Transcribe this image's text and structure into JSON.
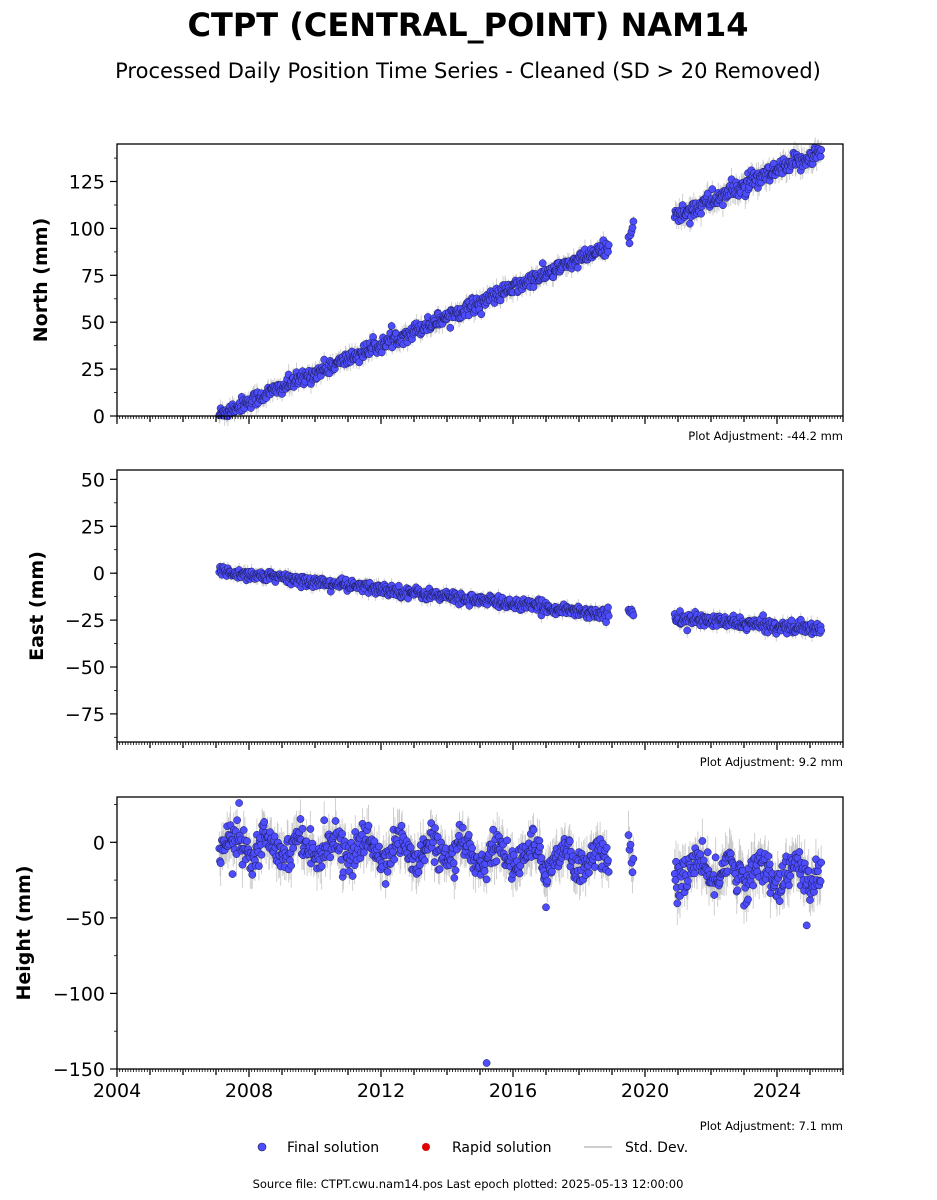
{
  "title": "CTPT (CENTRAL_POINT) NAM14",
  "subtitle": "Processed Daily Position Time Series - Cleaned (SD > 20 Removed)",
  "source_note": "Source file: CTPT.cwu.nam14.pos  Last epoch plotted: 2025-05-13 12:00:00",
  "legend": {
    "final": "Final solution",
    "rapid": "Rapid solution",
    "std": "Std. Dev."
  },
  "colors": {
    "final": "#4d4dff",
    "final_edge": "#1a1a4d",
    "rapid": "#e00000",
    "std": "#bdbdbd"
  },
  "chart_data": [
    {
      "type": "scatter",
      "ylabel": "North (mm)",
      "xlim": [
        2004,
        2026
      ],
      "ylim": [
        0,
        145
      ],
      "yticks": [
        0,
        25,
        50,
        75,
        100,
        125
      ],
      "ytick_labels": [
        "0",
        "25",
        "50",
        "75",
        "100",
        "125"
      ],
      "adjustment": "Plot Adjustment: -44.2 mm",
      "segments": [
        {
          "x": [
            2007.1,
            2018.9
          ],
          "y": [
            1,
            90
          ],
          "sd": 2.0,
          "step": 0.02
        },
        {
          "x": [
            2019.5,
            2019.65
          ],
          "y": [
            95,
            103
          ],
          "sd": 2.0,
          "step": 0.03
        },
        {
          "x": [
            2020.9,
            2025.35
          ],
          "y": [
            106,
            141
          ],
          "sd": 2.5,
          "step": 0.02
        }
      ],
      "outliers": []
    },
    {
      "type": "scatter",
      "ylabel": "East (mm)",
      "xlim": [
        2004,
        2026
      ],
      "ylim": [
        -90,
        55
      ],
      "yticks": [
        -75,
        -50,
        -25,
        0,
        25,
        50
      ],
      "ytick_labels": [
        "−75",
        "−50",
        "−25",
        "0",
        "25",
        "50"
      ],
      "adjustment": "Plot Adjustment: 9.2 mm",
      "segments": [
        {
          "x": [
            2007.1,
            2018.9
          ],
          "y": [
            1,
            -22
          ],
          "sd": 1.5,
          "step": 0.02
        },
        {
          "x": [
            2019.5,
            2019.65
          ],
          "y": [
            -20,
            -23
          ],
          "sd": 1.5,
          "step": 0.03
        },
        {
          "x": [
            2020.9,
            2025.35
          ],
          "y": [
            -24,
            -30
          ],
          "sd": 1.6,
          "step": 0.02
        }
      ],
      "outliers": []
    },
    {
      "type": "scatter",
      "ylabel": "Height (mm)",
      "xlabel": "",
      "xlim": [
        2004,
        2026
      ],
      "ylim": [
        -150,
        30
      ],
      "yticks": [
        -150,
        -100,
        -50,
        0
      ],
      "ytick_labels": [
        "−150",
        "−100",
        "−50",
        "0"
      ],
      "xticks": [
        2004,
        2008,
        2012,
        2016,
        2020,
        2024
      ],
      "adjustment": "Plot Adjustment: 7.1 mm",
      "segments": [
        {
          "x": [
            2007.1,
            2018.9
          ],
          "y": [
            0,
            -12
          ],
          "sd": 5.5,
          "step": 0.02
        },
        {
          "x": [
            2019.5,
            2019.65
          ],
          "y": [
            -12,
            -20
          ],
          "sd": 6.0,
          "step": 0.03
        },
        {
          "x": [
            2020.9,
            2025.35
          ],
          "y": [
            -18,
            -22
          ],
          "sd": 6.0,
          "step": 0.02
        }
      ],
      "outliers": [
        {
          "x": 2007.5,
          "y": -21
        },
        {
          "x": 2007.7,
          "y": 26
        },
        {
          "x": 2017.0,
          "y": -43
        },
        {
          "x": 2024.9,
          "y": -55
        },
        {
          "x": 2015.2,
          "y": -146
        }
      ]
    }
  ]
}
